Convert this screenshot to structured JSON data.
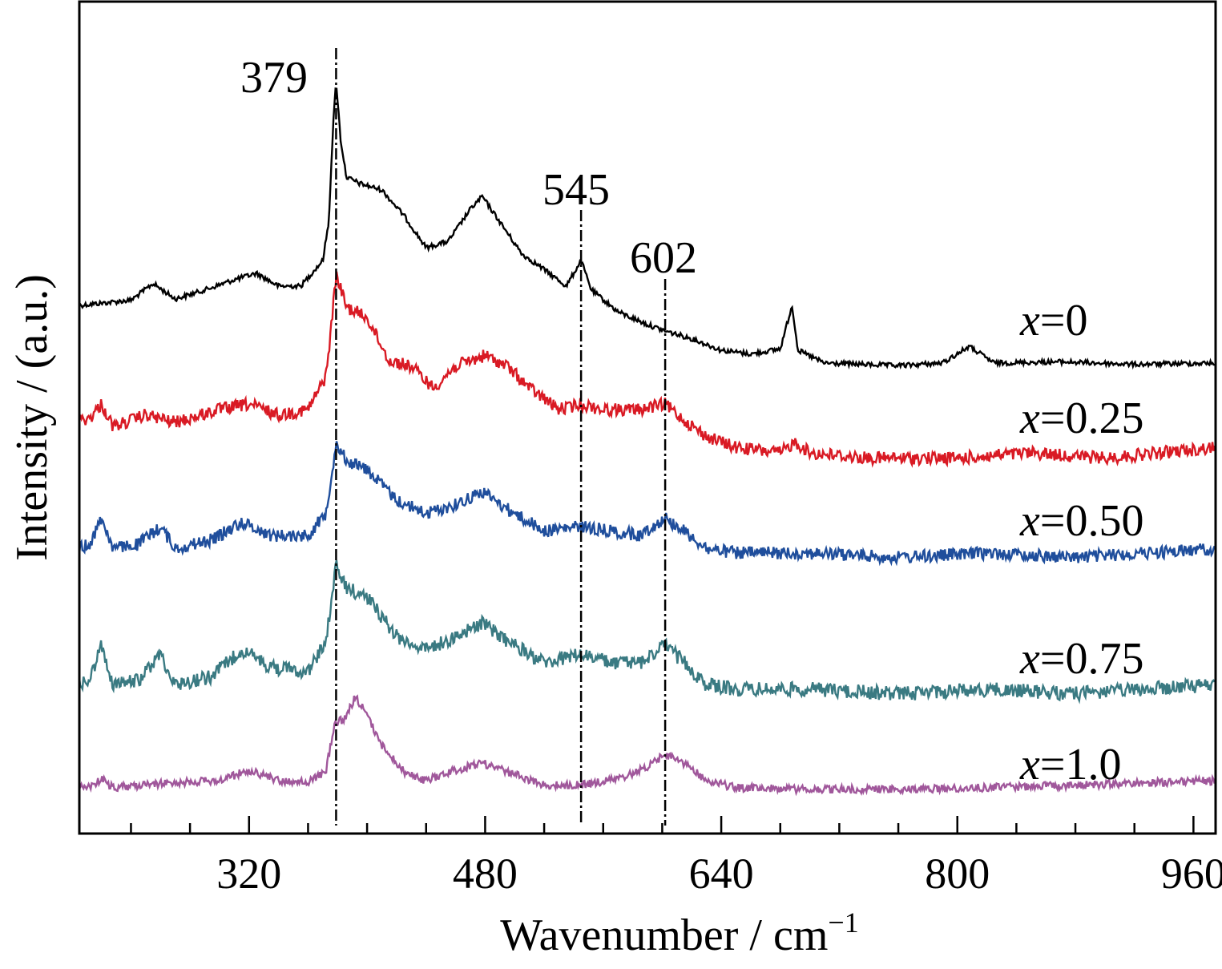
{
  "chart_data": {
    "type": "line",
    "xlabel": "Wavenumber / cm",
    "xlabel_sup": "−1",
    "ylabel": "Intensity / (a.u.)",
    "xlim": [
      205,
      975
    ],
    "x_ticks": [
      320,
      480,
      640,
      800,
      960
    ],
    "grid": false,
    "legend": "labels placed at right end of each curve",
    "stacked_offset": true,
    "reference_peaks": [
      {
        "label": "379",
        "x": 379
      },
      {
        "label": "545",
        "x": 545
      },
      {
        "label": "602",
        "x": 602
      }
    ],
    "series": [
      {
        "name": "x=0",
        "var": "x",
        "value_text": "=0",
        "color": "#000000",
        "noise": 3,
        "offset": 0.0,
        "points": [
          [
            205,
            0.4
          ],
          [
            240,
            0.44
          ],
          [
            255,
            0.57
          ],
          [
            270,
            0.45
          ],
          [
            290,
            0.52
          ],
          [
            310,
            0.6
          ],
          [
            325,
            0.65
          ],
          [
            340,
            0.55
          ],
          [
            355,
            0.55
          ],
          [
            370,
            0.75
          ],
          [
            374,
            1.05
          ],
          [
            377,
            1.8
          ],
          [
            379,
            2.15
          ],
          [
            382,
            1.7
          ],
          [
            386,
            1.4
          ],
          [
            395,
            1.35
          ],
          [
            410,
            1.3
          ],
          [
            425,
            1.1
          ],
          [
            440,
            0.85
          ],
          [
            455,
            0.9
          ],
          [
            470,
            1.15
          ],
          [
            478,
            1.25
          ],
          [
            490,
            1.05
          ],
          [
            505,
            0.8
          ],
          [
            520,
            0.68
          ],
          [
            535,
            0.55
          ],
          [
            545,
            0.75
          ],
          [
            552,
            0.52
          ],
          [
            570,
            0.35
          ],
          [
            590,
            0.25
          ],
          [
            602,
            0.2
          ],
          [
            620,
            0.14
          ],
          [
            640,
            0.05
          ],
          [
            660,
            0.02
          ],
          [
            680,
            0.06
          ],
          [
            688,
            0.4
          ],
          [
            692,
            0.05
          ],
          [
            710,
            -0.05
          ],
          [
            760,
            -0.07
          ],
          [
            790,
            -0.05
          ],
          [
            808,
            0.08
          ],
          [
            825,
            -0.05
          ],
          [
            870,
            -0.04
          ],
          [
            920,
            -0.06
          ],
          [
            975,
            -0.05
          ]
        ]
      },
      {
        "name": "x=0.25",
        "var": "x",
        "value_text": "=0.25",
        "color": "#d91a24",
        "noise": 8,
        "offset": 0.0,
        "points": [
          [
            205,
            0.3
          ],
          [
            212,
            0.32
          ],
          [
            220,
            0.45
          ],
          [
            228,
            0.24
          ],
          [
            250,
            0.35
          ],
          [
            270,
            0.28
          ],
          [
            300,
            0.4
          ],
          [
            320,
            0.45
          ],
          [
            340,
            0.35
          ],
          [
            360,
            0.4
          ],
          [
            372,
            0.7
          ],
          [
            376,
            1.2
          ],
          [
            379,
            1.65
          ],
          [
            386,
            1.35
          ],
          [
            400,
            1.25
          ],
          [
            415,
            0.85
          ],
          [
            430,
            0.8
          ],
          [
            445,
            0.6
          ],
          [
            460,
            0.8
          ],
          [
            480,
            0.9
          ],
          [
            495,
            0.8
          ],
          [
            510,
            0.6
          ],
          [
            530,
            0.4
          ],
          [
            545,
            0.45
          ],
          [
            560,
            0.4
          ],
          [
            585,
            0.4
          ],
          [
            602,
            0.45
          ],
          [
            615,
            0.3
          ],
          [
            630,
            0.15
          ],
          [
            650,
            0.05
          ],
          [
            680,
            0.0
          ],
          [
            690,
            0.1
          ],
          [
            700,
            0.0
          ],
          [
            740,
            -0.05
          ],
          [
            800,
            -0.05
          ],
          [
            850,
            0.0
          ],
          [
            900,
            -0.05
          ],
          [
            975,
            0.05
          ]
        ]
      },
      {
        "name": "x=0.50",
        "var": "x",
        "value_text": "=0.50",
        "color": "#1f4e9c",
        "noise": 8,
        "offset": 0.0,
        "points": [
          [
            205,
            0.05
          ],
          [
            212,
            0.1
          ],
          [
            220,
            0.4
          ],
          [
            228,
            0.05
          ],
          [
            245,
            0.1
          ],
          [
            260,
            0.3
          ],
          [
            270,
            0.05
          ],
          [
            295,
            0.15
          ],
          [
            315,
            0.35
          ],
          [
            335,
            0.2
          ],
          [
            360,
            0.2
          ],
          [
            372,
            0.45
          ],
          [
            376,
            0.9
          ],
          [
            379,
            1.25
          ],
          [
            386,
            1.05
          ],
          [
            400,
            0.95
          ],
          [
            420,
            0.6
          ],
          [
            440,
            0.45
          ],
          [
            460,
            0.55
          ],
          [
            478,
            0.7
          ],
          [
            495,
            0.5
          ],
          [
            520,
            0.25
          ],
          [
            545,
            0.3
          ],
          [
            565,
            0.25
          ],
          [
            585,
            0.2
          ],
          [
            602,
            0.4
          ],
          [
            615,
            0.25
          ],
          [
            630,
            0.05
          ],
          [
            650,
            0.0
          ],
          [
            700,
            0.0
          ],
          [
            760,
            -0.05
          ],
          [
            820,
            0.0
          ],
          [
            880,
            -0.05
          ],
          [
            975,
            0.05
          ]
        ]
      },
      {
        "name": "x=0.75",
        "var": "x",
        "value_text": "=0.75",
        "color": "#3a7a82",
        "noise": 9,
        "offset": 0.0,
        "points": [
          [
            205,
            0.05
          ],
          [
            212,
            0.1
          ],
          [
            220,
            0.5
          ],
          [
            228,
            0.05
          ],
          [
            245,
            0.1
          ],
          [
            260,
            0.4
          ],
          [
            270,
            0.05
          ],
          [
            295,
            0.15
          ],
          [
            315,
            0.45
          ],
          [
            335,
            0.25
          ],
          [
            360,
            0.2
          ],
          [
            372,
            0.55
          ],
          [
            376,
            1.0
          ],
          [
            379,
            1.4
          ],
          [
            386,
            1.15
          ],
          [
            400,
            1.05
          ],
          [
            420,
            0.6
          ],
          [
            440,
            0.45
          ],
          [
            460,
            0.6
          ],
          [
            478,
            0.75
          ],
          [
            495,
            0.55
          ],
          [
            520,
            0.3
          ],
          [
            545,
            0.4
          ],
          [
            565,
            0.3
          ],
          [
            585,
            0.3
          ],
          [
            602,
            0.5
          ],
          [
            615,
            0.3
          ],
          [
            630,
            0.05
          ],
          [
            650,
            0.0
          ],
          [
            700,
            0.0
          ],
          [
            760,
            -0.05
          ],
          [
            820,
            0.0
          ],
          [
            880,
            -0.05
          ],
          [
            975,
            0.05
          ]
        ]
      },
      {
        "name": "x=1.0",
        "var": "x",
        "value_text": "=1.0",
        "color": "#a0579b",
        "noise": 5,
        "offset": 0.0,
        "points": [
          [
            205,
            0.02
          ],
          [
            215,
            0.05
          ],
          [
            220,
            0.12
          ],
          [
            228,
            0.02
          ],
          [
            270,
            0.08
          ],
          [
            300,
            0.1
          ],
          [
            320,
            0.22
          ],
          [
            340,
            0.1
          ],
          [
            360,
            0.08
          ],
          [
            372,
            0.2
          ],
          [
            378,
            0.75
          ],
          [
            385,
            0.8
          ],
          [
            392,
            1.05
          ],
          [
            398,
            0.9
          ],
          [
            410,
            0.5
          ],
          [
            425,
            0.2
          ],
          [
            440,
            0.1
          ],
          [
            460,
            0.22
          ],
          [
            478,
            0.3
          ],
          [
            495,
            0.2
          ],
          [
            520,
            0.05
          ],
          [
            545,
            0.05
          ],
          [
            570,
            0.12
          ],
          [
            590,
            0.25
          ],
          [
            602,
            0.4
          ],
          [
            615,
            0.3
          ],
          [
            630,
            0.1
          ],
          [
            650,
            0.02
          ],
          [
            700,
            0.0
          ],
          [
            760,
            0.0
          ],
          [
            820,
            0.02
          ],
          [
            880,
            0.05
          ],
          [
            975,
            0.1
          ]
        ]
      }
    ],
    "series_label_positions": [
      "right"
    ]
  }
}
